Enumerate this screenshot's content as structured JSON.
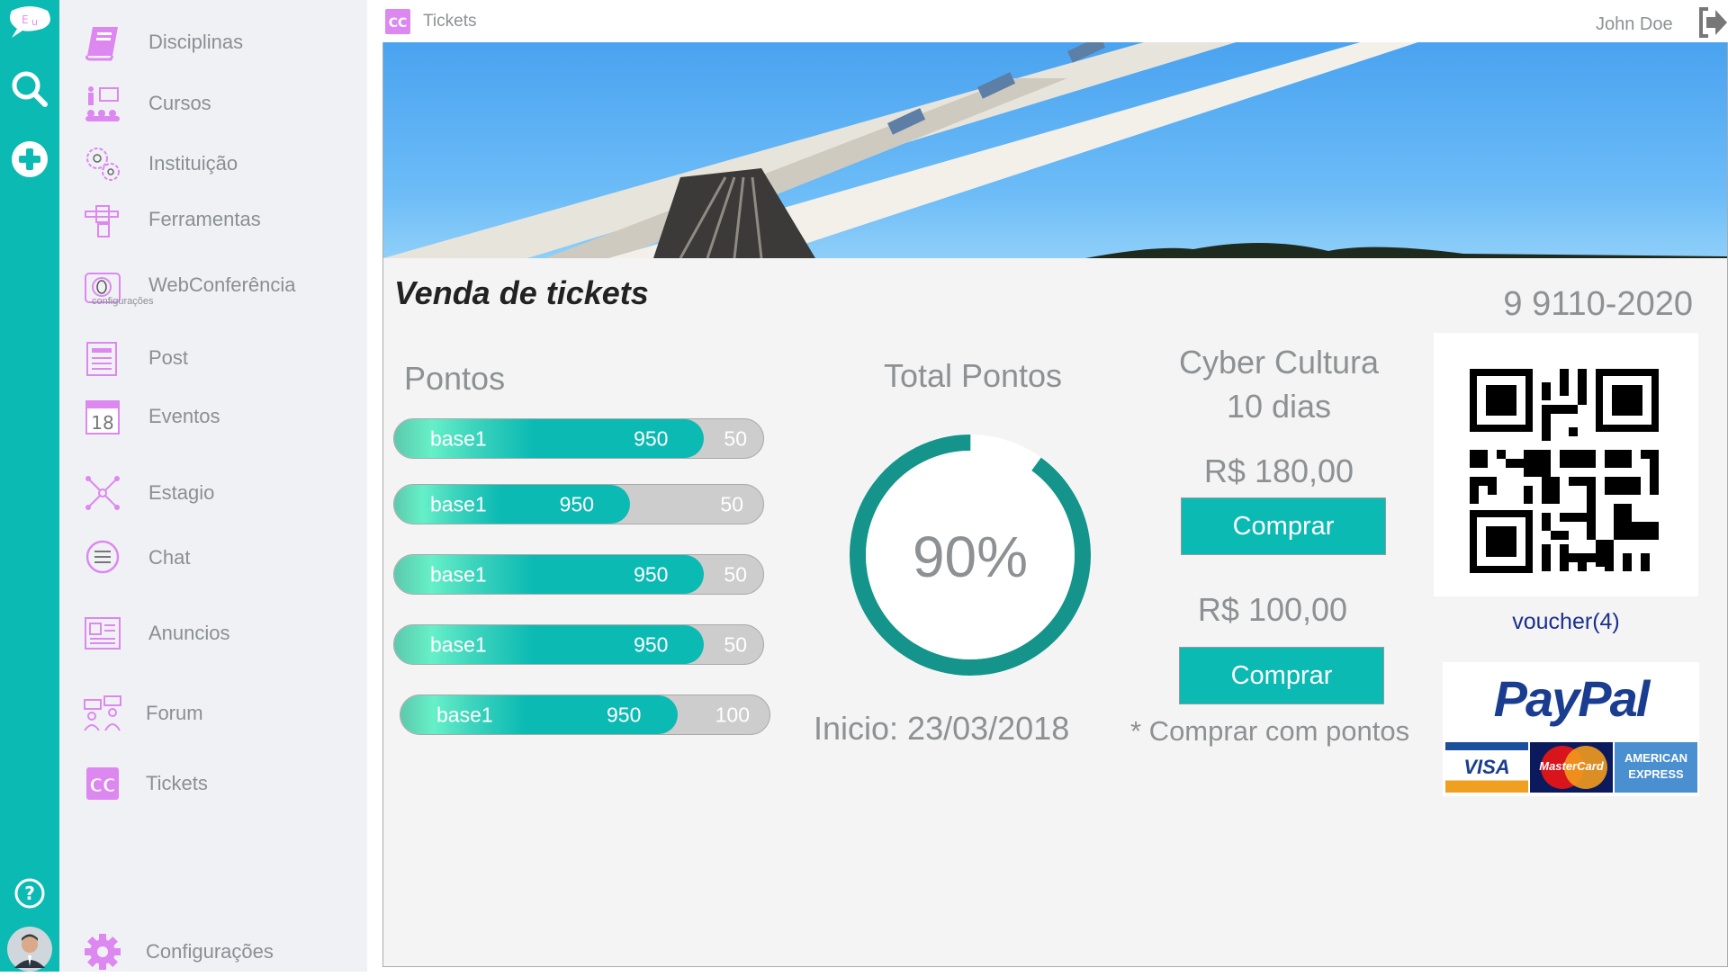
{
  "rail": {
    "logo_text": "Eu",
    "icons": [
      "logo-icon",
      "search-icon",
      "plus-icon",
      "help-icon",
      "avatar"
    ]
  },
  "sidebar": {
    "items": [
      {
        "label": "Disciplinas",
        "icon": "book-icon"
      },
      {
        "label": "Cursos",
        "icon": "presentation-icon"
      },
      {
        "label": "Instituição",
        "icon": "gears-icon"
      },
      {
        "label": "Ferramentas",
        "icon": "tools-hand-icon"
      },
      {
        "label": "WebConferência",
        "icon": "camera-icon",
        "sub": "configurações"
      },
      {
        "label": "Post",
        "icon": "newspaper-icon"
      },
      {
        "label": "Eventos",
        "icon": "calendar-icon",
        "badge": "18"
      },
      {
        "label": "Estagio",
        "icon": "network-icon"
      },
      {
        "label": "Chat",
        "icon": "chat-icon"
      },
      {
        "label": "Anuncios",
        "icon": "announcement-icon"
      },
      {
        "label": "Forum",
        "icon": "forum-icon"
      },
      {
        "label": "Tickets",
        "icon": "tickets-icon",
        "badge": "CC"
      },
      {
        "label": "Configurações",
        "icon": "gear-icon"
      }
    ]
  },
  "header": {
    "page_title": "Tickets",
    "tickets_badge": "CC",
    "user": "John Doe"
  },
  "main": {
    "title": "Venda de tickets",
    "phone": "9 9110-2020",
    "points_title": "Pontos",
    "bars": [
      {
        "label": "base1",
        "value": "950",
        "rest": "50",
        "fill": 0.84
      },
      {
        "label": "base1",
        "value": "950",
        "rest": "50",
        "fill": 0.64
      },
      {
        "label": "base1",
        "value": "950",
        "rest": "50",
        "fill": 0.84
      },
      {
        "label": "base1",
        "value": "950",
        "rest": "50",
        "fill": 0.84
      },
      {
        "label": "base1",
        "value": "950",
        "rest": "100",
        "fill": 0.75
      }
    ],
    "total_title": "Total Pontos",
    "total_percent": "90%",
    "total_fraction": 0.9,
    "start": "Inicio: 23/03/2018",
    "product_name": "Cyber Cultura",
    "product_duration": "10 dias",
    "price1": "R$ 180,00",
    "buy1": "Comprar",
    "price2": "R$ 100,00",
    "buy2": "Comprar",
    "points_note": "* Comprar com pontos",
    "voucher": "voucher(4)",
    "paypal": "PayPal",
    "cards": [
      "VISA",
      "MasterCard",
      "AMERICAN EXPRESS"
    ],
    "accent": "#0bbab3"
  }
}
